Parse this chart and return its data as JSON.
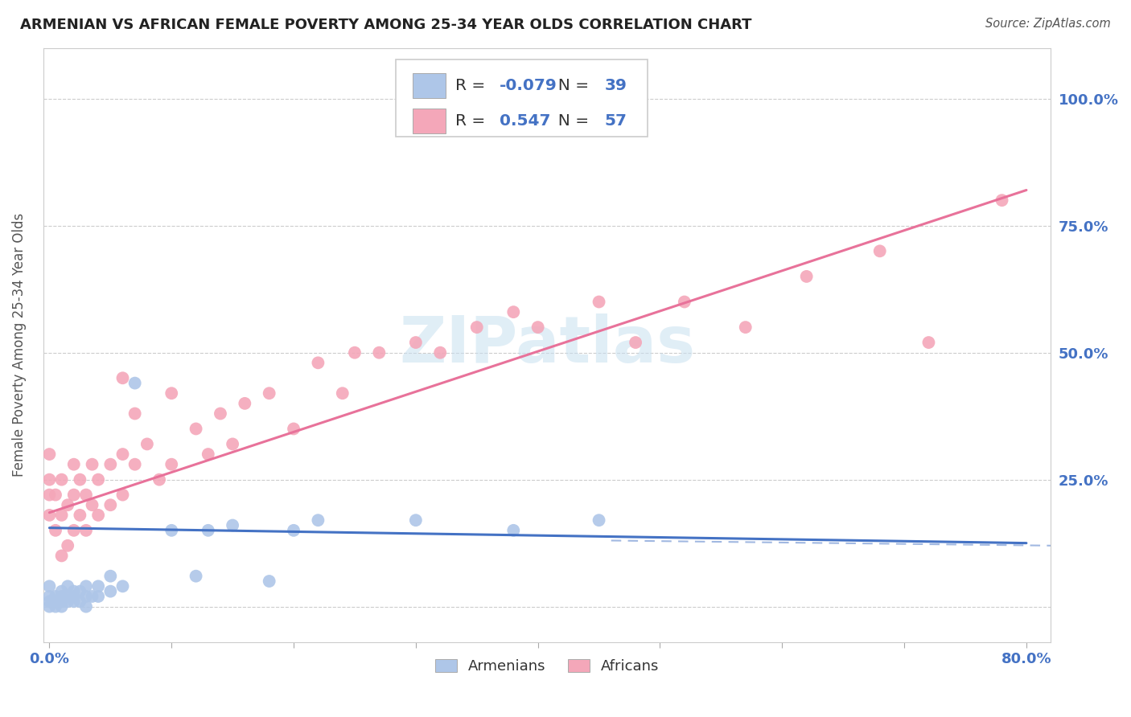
{
  "title": "ARMENIAN VS AFRICAN FEMALE POVERTY AMONG 25-34 YEAR OLDS CORRELATION CHART",
  "source": "Source: ZipAtlas.com",
  "ylabel": "Female Poverty Among 25-34 Year Olds",
  "armenian_R": -0.079,
  "armenian_N": 39,
  "african_R": 0.547,
  "african_N": 57,
  "armenian_color": "#aec6e8",
  "african_color": "#f4a7b9",
  "armenian_line_color": "#4472c4",
  "african_line_color": "#e8729a",
  "xlim": [
    -0.005,
    0.82
  ],
  "ylim": [
    -0.07,
    1.1
  ],
  "armenian_x": [
    0.0,
    0.0,
    0.0,
    0.0,
    0.005,
    0.005,
    0.005,
    0.01,
    0.01,
    0.01,
    0.01,
    0.015,
    0.015,
    0.015,
    0.02,
    0.02,
    0.02,
    0.025,
    0.025,
    0.03,
    0.03,
    0.03,
    0.035,
    0.04,
    0.04,
    0.05,
    0.05,
    0.06,
    0.07,
    0.1,
    0.12,
    0.13,
    0.15,
    0.18,
    0.2,
    0.22,
    0.3,
    0.38,
    0.45
  ],
  "armenian_y": [
    0.0,
    0.01,
    0.02,
    0.04,
    0.0,
    0.01,
    0.02,
    0.0,
    0.01,
    0.02,
    0.03,
    0.01,
    0.02,
    0.04,
    0.01,
    0.02,
    0.03,
    0.01,
    0.03,
    0.0,
    0.02,
    0.04,
    0.02,
    0.02,
    0.04,
    0.03,
    0.06,
    0.04,
    0.44,
    0.15,
    0.06,
    0.15,
    0.16,
    0.05,
    0.15,
    0.17,
    0.17,
    0.15,
    0.17
  ],
  "african_x": [
    0.0,
    0.0,
    0.0,
    0.0,
    0.005,
    0.005,
    0.01,
    0.01,
    0.01,
    0.015,
    0.015,
    0.02,
    0.02,
    0.02,
    0.025,
    0.025,
    0.03,
    0.03,
    0.035,
    0.035,
    0.04,
    0.04,
    0.05,
    0.05,
    0.06,
    0.06,
    0.06,
    0.07,
    0.07,
    0.08,
    0.09,
    0.1,
    0.1,
    0.12,
    0.13,
    0.14,
    0.15,
    0.16,
    0.18,
    0.2,
    0.22,
    0.24,
    0.25,
    0.27,
    0.3,
    0.32,
    0.35,
    0.38,
    0.4,
    0.45,
    0.48,
    0.52,
    0.57,
    0.62,
    0.68,
    0.72,
    0.78
  ],
  "african_y": [
    0.18,
    0.22,
    0.25,
    0.3,
    0.15,
    0.22,
    0.1,
    0.18,
    0.25,
    0.12,
    0.2,
    0.15,
    0.22,
    0.28,
    0.18,
    0.25,
    0.15,
    0.22,
    0.2,
    0.28,
    0.18,
    0.25,
    0.2,
    0.28,
    0.22,
    0.3,
    0.45,
    0.28,
    0.38,
    0.32,
    0.25,
    0.28,
    0.42,
    0.35,
    0.3,
    0.38,
    0.32,
    0.4,
    0.42,
    0.35,
    0.48,
    0.42,
    0.5,
    0.5,
    0.52,
    0.5,
    0.55,
    0.58,
    0.55,
    0.6,
    0.52,
    0.6,
    0.55,
    0.65,
    0.7,
    0.52,
    0.8
  ],
  "line_arm_x0": 0.0,
  "line_arm_x1": 0.8,
  "line_arm_y0": 0.155,
  "line_arm_y1": 0.125,
  "line_afr_x0": 0.0,
  "line_afr_x1": 0.8,
  "line_afr_y0": 0.185,
  "line_afr_y1": 0.82
}
